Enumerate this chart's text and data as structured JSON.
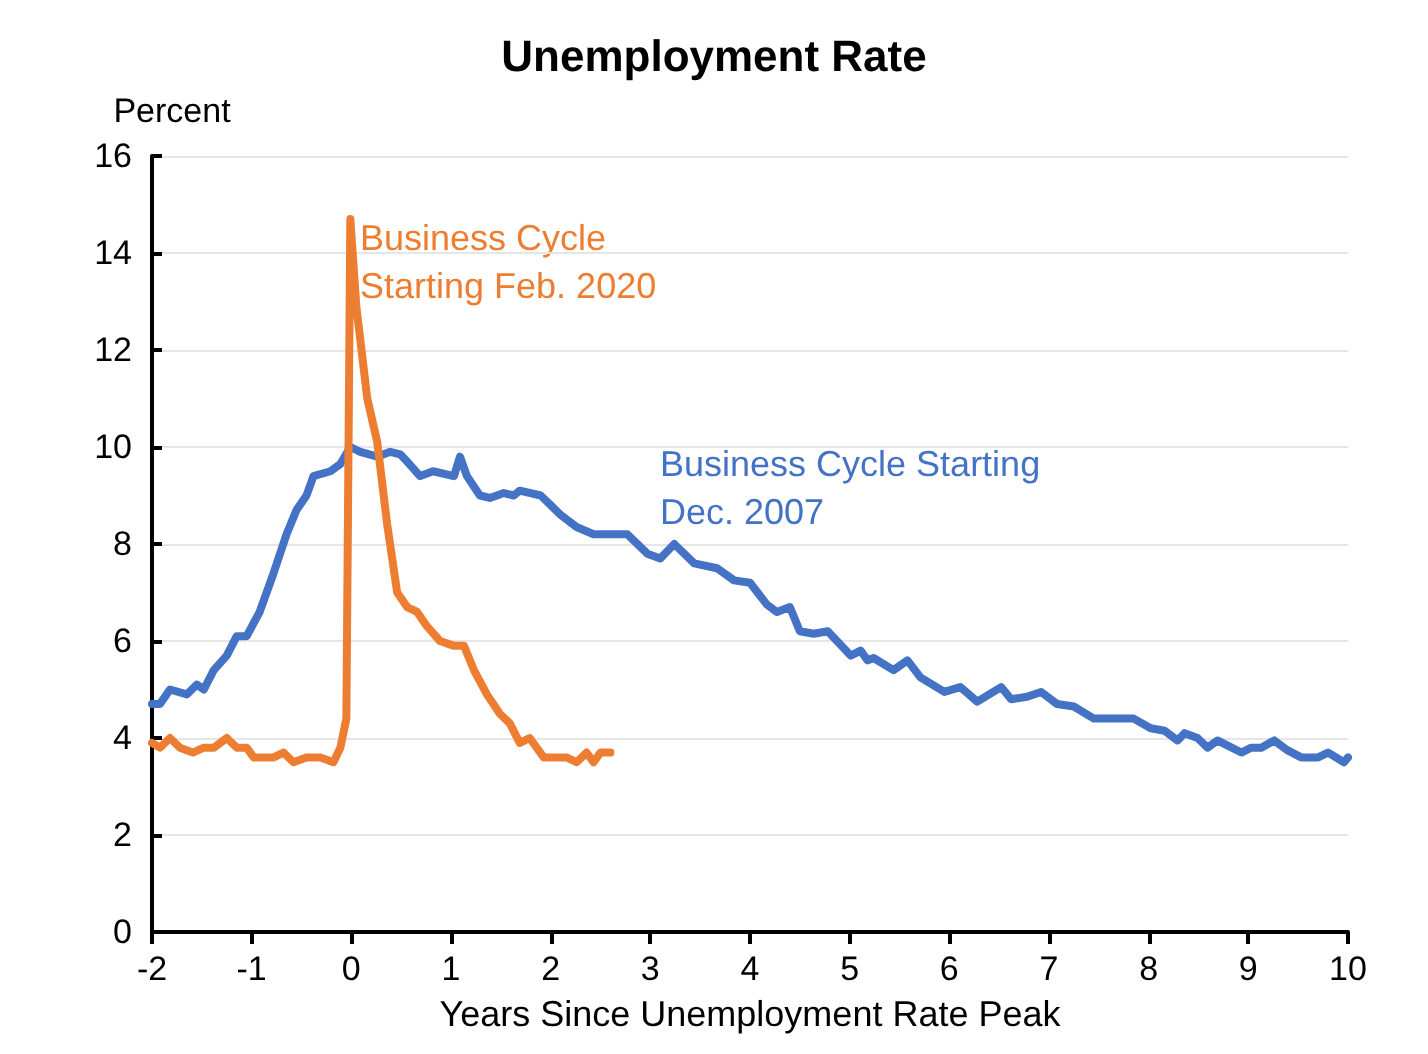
{
  "chart_data": {
    "type": "line",
    "title": "Unemployment Rate",
    "xlabel": "Years Since Unemployment Rate Peak",
    "ylabel": "Percent",
    "xlim": [
      -2,
      10
    ],
    "xticks": [
      -2,
      -1,
      0,
      1,
      2,
      3,
      4,
      5,
      6,
      7,
      8,
      9,
      10
    ],
    "ylim": [
      0,
      16
    ],
    "yticks": [
      0,
      2,
      4,
      6,
      8,
      10,
      12,
      14,
      16
    ],
    "grid": "y",
    "legend": false,
    "marker": "none",
    "line_style": "solid",
    "series": [
      {
        "name": "Business Cycle Starting Dec. 2007",
        "color": "#4472c4",
        "x": [
          -2,
          -1.92,
          -1.82,
          -1.65,
          -1.55,
          -1.48,
          -1.38,
          -1.25,
          -1.15,
          -1.05,
          -0.92,
          -0.78,
          -0.65,
          -0.55,
          -0.45,
          -0.38,
          -0.21,
          -0.11,
          -0.01,
          0.09,
          0.26,
          0.39,
          0.49,
          0.56,
          0.69,
          0.82,
          1.03,
          1.09,
          1.16,
          1.29,
          1.39,
          1.53,
          1.63,
          1.69,
          1.9,
          2.0,
          2.1,
          2.26,
          2.43,
          2.77,
          2.97,
          3.1,
          3.24,
          3.44,
          3.67,
          3.84,
          4.0,
          4.17,
          4.27,
          4.4,
          4.5,
          4.64,
          4.78,
          5.01,
          5.11,
          5.18,
          5.24,
          5.44,
          5.58,
          5.71,
          5.95,
          6.11,
          6.28,
          6.52,
          6.62,
          6.78,
          6.92,
          7.08,
          7.25,
          7.45,
          7.65,
          7.85,
          8.02,
          8.16,
          8.29,
          8.36,
          8.49,
          8.59,
          8.69,
          8.93,
          9.03,
          9.13,
          9.26,
          9.39,
          9.53,
          9.7,
          9.8,
          9.96,
          10.0
        ],
        "values": [
          4.7,
          4.7,
          5.0,
          4.9,
          5.1,
          5.0,
          5.4,
          5.7,
          6.1,
          6.1,
          6.6,
          7.4,
          8.2,
          8.7,
          9.0,
          9.4,
          9.5,
          9.65,
          10.0,
          9.9,
          9.8,
          9.9,
          9.85,
          9.7,
          9.4,
          9.5,
          9.4,
          9.8,
          9.4,
          9.0,
          8.95,
          9.05,
          9.0,
          9.1,
          9.0,
          8.8,
          8.6,
          8.35,
          8.2,
          8.2,
          7.8,
          7.7,
          8.0,
          7.6,
          7.5,
          7.25,
          7.2,
          6.75,
          6.6,
          6.7,
          6.2,
          6.15,
          6.2,
          5.7,
          5.8,
          5.6,
          5.65,
          5.4,
          5.6,
          5.25,
          4.95,
          5.05,
          4.75,
          5.05,
          4.8,
          4.85,
          4.95,
          4.7,
          4.65,
          4.4,
          4.4,
          4.4,
          4.2,
          4.15,
          3.95,
          4.1,
          4.0,
          3.8,
          3.95,
          3.7,
          3.8,
          3.8,
          3.95,
          3.75,
          3.6,
          3.6,
          3.7,
          3.5,
          3.6
        ]
      },
      {
        "name": "Business Cycle Starting Feb. 2020",
        "color": "#ed7d31",
        "x": [
          -2,
          -1.92,
          -1.82,
          -1.72,
          -1.59,
          -1.48,
          -1.38,
          -1.25,
          -1.15,
          -1.05,
          -0.98,
          -0.78,
          -0.68,
          -0.58,
          -0.45,
          -0.31,
          -0.18,
          -0.11,
          -0.05,
          -0.01,
          0.05,
          0.16,
          0.26,
          0.36,
          0.46,
          0.56,
          0.66,
          0.76,
          0.89,
          1.03,
          1.13,
          1.23,
          1.36,
          1.49,
          1.59,
          1.69,
          1.79,
          1.93,
          2.16,
          2.26,
          2.36,
          2.43,
          2.5,
          2.6
        ],
        "values": [
          3.9,
          3.8,
          4.0,
          3.8,
          3.7,
          3.8,
          3.8,
          4.0,
          3.8,
          3.8,
          3.6,
          3.6,
          3.7,
          3.5,
          3.6,
          3.6,
          3.5,
          3.8,
          4.4,
          14.7,
          12.9,
          11.0,
          10.1,
          8.4,
          7.0,
          6.7,
          6.6,
          6.3,
          6.0,
          5.9,
          5.9,
          5.4,
          4.9,
          4.5,
          4.3,
          3.9,
          4.0,
          3.6,
          3.6,
          3.5,
          3.7,
          3.5,
          3.7,
          3.7
        ]
      }
    ]
  }
}
